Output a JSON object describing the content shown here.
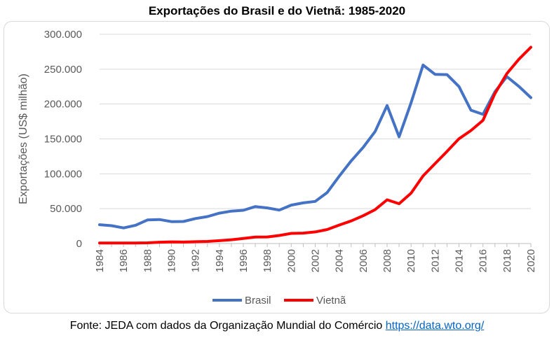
{
  "chart_data": {
    "type": "line",
    "title": "Exportações do Brasil e do Vietnã: 1985-2020",
    "ylabel": "Exportações (US$ milhão)",
    "xlabel": "",
    "x": [
      1984,
      1985,
      1986,
      1987,
      1988,
      1989,
      1990,
      1991,
      1992,
      1993,
      1994,
      1995,
      1996,
      1997,
      1998,
      1999,
      2000,
      2001,
      2002,
      2003,
      2004,
      2005,
      2006,
      2007,
      2008,
      2009,
      2010,
      2011,
      2012,
      2013,
      2014,
      2015,
      2016,
      2017,
      2018,
      2019,
      2020
    ],
    "xticks": [
      "1984",
      "1986",
      "1988",
      "1990",
      "1992",
      "1994",
      "1996",
      "1998",
      "2000",
      "2002",
      "2004",
      "2006",
      "2008",
      "2010",
      "2012",
      "2014",
      "2016",
      "2018",
      "2020"
    ],
    "ylim": [
      0,
      300000
    ],
    "yticks": [
      "0",
      "50.000",
      "100.000",
      "150.000",
      "200.000",
      "250.000",
      "300.000"
    ],
    "grid": true,
    "legend_position": "bottom",
    "series": [
      {
        "name": "Brasil",
        "color": "#4472c4",
        "values": [
          27000,
          25600,
          22400,
          26200,
          33800,
          34400,
          31400,
          31600,
          35800,
          38600,
          43500,
          46500,
          47700,
          53000,
          51100,
          48000,
          55100,
          58300,
          60400,
          73100,
          96500,
          118500,
          137800,
          160600,
          197900,
          153000,
          201900,
          256000,
          242600,
          242200,
          225100,
          191100,
          185200,
          217700,
          239300,
          225400,
          209200
        ]
      },
      {
        "name": "Vietnã",
        "color": "#ff0000",
        "values": [
          700,
          700,
          800,
          850,
          1000,
          1900,
          2400,
          2100,
          2600,
          3000,
          4100,
          5400,
          7300,
          9200,
          9400,
          11500,
          14500,
          15000,
          16700,
          20100,
          26500,
          32400,
          39800,
          48600,
          62700,
          57100,
          72200,
          96900,
          114500,
          132000,
          150200,
          162000,
          176600,
          215100,
          243700,
          264200,
          281400
        ]
      }
    ]
  },
  "source": {
    "text": "Fonte: JEDA com dados da Organização Mundial do Comércio ",
    "link": "https://data.wto.org/"
  }
}
